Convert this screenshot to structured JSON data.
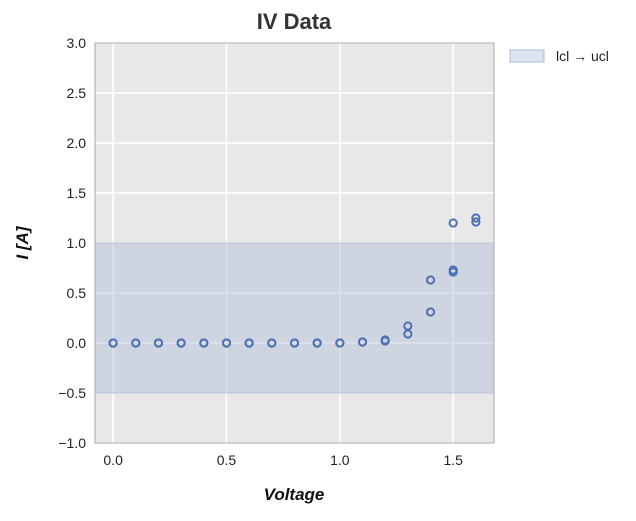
{
  "chart_data": {
    "type": "scatter",
    "title": "IV Data",
    "xlabel": "Voltage",
    "ylabel": "I [A]",
    "xlim": [
      -0.08,
      1.68
    ],
    "ylim": [
      -1.0,
      3.0
    ],
    "xticks": [
      0.0,
      0.5,
      1.0,
      1.5
    ],
    "xtick_labels": [
      "0.0",
      "0.5",
      "1.0",
      "1.5"
    ],
    "yticks": [
      -1.0,
      -0.5,
      0.0,
      0.5,
      1.0,
      1.5,
      2.0,
      2.5,
      3.0
    ],
    "ytick_labels": [
      "−1.0",
      "−0.5",
      "0.0",
      "0.5",
      "1.0",
      "1.5",
      "2.0",
      "2.5",
      "3.0"
    ],
    "grid": true,
    "band": {
      "name": "lcl → ucl",
      "lcl": -0.5,
      "ucl": 1.0
    },
    "legend": {
      "position": "outside-top-right",
      "entries": [
        "lcl → ucl"
      ]
    },
    "colors": {
      "marker": "#4c72b0",
      "band": "#b0bcd6",
      "plot_bg": "#e8e8e8",
      "grid": "#ffffff"
    },
    "points": [
      {
        "x": 0.0,
        "y": 0.0
      },
      {
        "x": 0.0,
        "y": 0.0
      },
      {
        "x": 0.1,
        "y": 0.0
      },
      {
        "x": 0.1,
        "y": 0.0
      },
      {
        "x": 0.2,
        "y": 0.0
      },
      {
        "x": 0.2,
        "y": 0.0
      },
      {
        "x": 0.3,
        "y": 0.0
      },
      {
        "x": 0.3,
        "y": 0.0
      },
      {
        "x": 0.4,
        "y": 0.0
      },
      {
        "x": 0.4,
        "y": 0.0
      },
      {
        "x": 0.5,
        "y": 0.0
      },
      {
        "x": 0.5,
        "y": 0.0
      },
      {
        "x": 0.6,
        "y": 0.0
      },
      {
        "x": 0.6,
        "y": 0.0
      },
      {
        "x": 0.7,
        "y": 0.0
      },
      {
        "x": 0.7,
        "y": 0.0
      },
      {
        "x": 0.8,
        "y": 0.0
      },
      {
        "x": 0.8,
        "y": 0.0
      },
      {
        "x": 0.9,
        "y": 0.0
      },
      {
        "x": 0.9,
        "y": 0.0
      },
      {
        "x": 1.0,
        "y": 0.0
      },
      {
        "x": 1.0,
        "y": 0.0
      },
      {
        "x": 1.1,
        "y": 0.01
      },
      {
        "x": 1.1,
        "y": 0.01
      },
      {
        "x": 1.2,
        "y": 0.02
      },
      {
        "x": 1.2,
        "y": 0.03
      },
      {
        "x": 1.3,
        "y": 0.09
      },
      {
        "x": 1.3,
        "y": 0.17
      },
      {
        "x": 1.4,
        "y": 0.31
      },
      {
        "x": 1.4,
        "y": 0.63
      },
      {
        "x": 1.5,
        "y": 0.71
      },
      {
        "x": 1.5,
        "y": 0.73
      },
      {
        "x": 1.5,
        "y": 1.2
      },
      {
        "x": 1.6,
        "y": 1.21
      },
      {
        "x": 1.6,
        "y": 1.25
      }
    ]
  }
}
